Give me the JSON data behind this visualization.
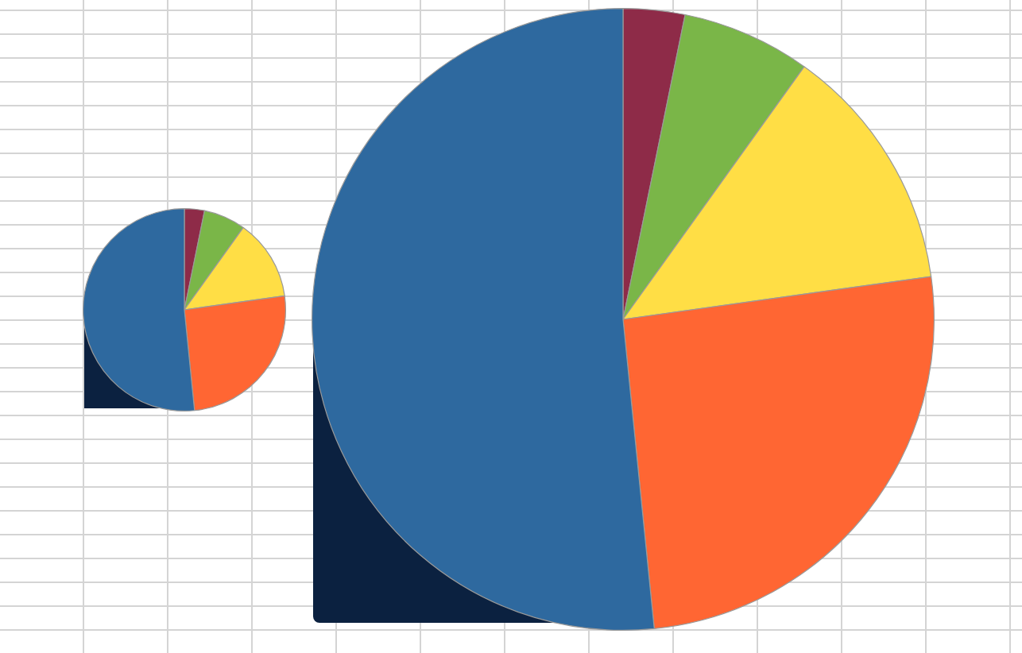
{
  "chart_data": [
    {
      "type": "pie",
      "categories": [
        null,
        null,
        null,
        null,
        null
      ],
      "values": [
        3.2,
        6.7,
        12.9,
        25.6,
        51.6
      ],
      "colors": [
        "#8e2b48",
        "#7ab648",
        "#ffde45",
        "#ff6633",
        "#2e699f"
      ],
      "legend": false
    },
    {
      "type": "pie",
      "categories": [
        null,
        null,
        null,
        null,
        null
      ],
      "values": [
        3.2,
        6.7,
        12.9,
        25.6,
        51.6
      ],
      "colors": [
        "#8e2b48",
        "#7ab648",
        "#ffde45",
        "#ff6633",
        "#2e699f"
      ],
      "legend": false
    }
  ]
}
